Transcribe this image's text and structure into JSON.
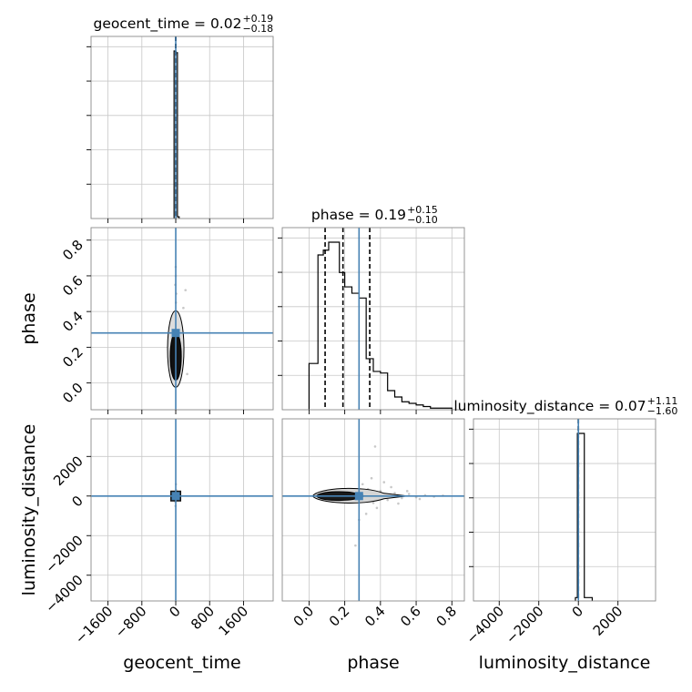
{
  "chart_data": {
    "type": "corner",
    "parameters": [
      "geocent_time",
      "phase",
      "luminosity_distance"
    ],
    "truths": {
      "geocent_time": 0.0,
      "phase": 0.28,
      "luminosity_distance": 0.0
    },
    "ranges": {
      "geocent_time": [
        -2000,
        2300
      ],
      "phase": [
        -0.15,
        0.87
      ],
      "luminosity_distance": [
        -5300,
        3900
      ]
    },
    "grid": true,
    "titles": [
      {
        "param": "geocent_time",
        "label": "geocent_time = 0.02",
        "plus": "+0.19",
        "minus": "−0.18"
      },
      {
        "param": "phase",
        "label": "phase = 0.19",
        "plus": "+0.15",
        "minus": "−0.10"
      },
      {
        "param": "luminosity_distance",
        "label": "luminosity_distance = 0.07",
        "plus": "+1.11",
        "minus": "−1.60"
      }
    ],
    "axis_labels": {
      "geocent_time": "geocent_time",
      "phase": "phase",
      "luminosity_distance": "luminosity_distance"
    },
    "ticks": {
      "geocent_time": {
        "values": [
          -1600,
          -800,
          0,
          800,
          1600
        ],
        "labels": [
          "−1600",
          "−800",
          "0",
          "800",
          "1600"
        ]
      },
      "phase": {
        "values": [
          0.0,
          0.2,
          0.4,
          0.6,
          0.8
        ],
        "labels": [
          "0.0",
          "0.2",
          "0.4",
          "0.6",
          "0.8"
        ]
      },
      "luminosity_distance": {
        "values": [
          -4000,
          -2000,
          0,
          2000
        ],
        "labels": [
          "−4000",
          "−2000",
          "0",
          "2000"
        ]
      }
    },
    "marginals": {
      "geocent_time": {
        "bin_edges": [
          -40,
          0,
          40,
          80
        ],
        "counts": [
          1.0,
          0.99,
          0.01
        ],
        "quantiles": [
          -0.16,
          0.02,
          0.21
        ]
      },
      "phase": {
        "bin_edges": [
          0.0,
          0.05,
          0.08,
          0.11,
          0.14,
          0.17,
          0.2,
          0.24,
          0.28,
          0.32,
          0.36,
          0.4,
          0.44,
          0.48,
          0.52,
          0.56,
          0.6,
          0.64,
          0.68,
          0.72,
          0.76,
          0.8
        ],
        "counts": [
          0.29,
          0.97,
          1.0,
          1.05,
          1.05,
          0.86,
          0.77,
          0.73,
          0.7,
          0.32,
          0.24,
          0.23,
          0.12,
          0.08,
          0.05,
          0.04,
          0.03,
          0.02,
          0.01,
          0.01,
          0.01
        ],
        "quantiles": [
          0.09,
          0.19,
          0.34
        ]
      },
      "luminosity_distance": {
        "bin_edges": [
          -150,
          -50,
          300,
          700
        ],
        "counts": [
          0.02,
          1.0,
          0.02
        ],
        "quantiles": [
          -1.53,
          0.07,
          1.18
        ]
      }
    },
    "scatter": {
      "geocent_time_vs_phase": [
        [
          0,
          0.05
        ],
        [
          5,
          0.08
        ],
        [
          -5,
          0.1
        ],
        [
          8,
          0.13
        ],
        [
          -8,
          0.16
        ],
        [
          3,
          0.2
        ],
        [
          -3,
          0.24
        ],
        [
          10,
          0.28
        ],
        [
          -10,
          0.31
        ],
        [
          6,
          0.35
        ],
        [
          -6,
          0.4
        ],
        [
          4,
          0.45
        ],
        [
          12,
          0.5
        ],
        [
          -12,
          0.55
        ],
        [
          2,
          0.6
        ],
        [
          0,
          0.65
        ],
        [
          20,
          0.12
        ],
        [
          -20,
          0.18
        ],
        [
          15,
          0.22
        ],
        [
          -15,
          0.26
        ],
        [
          25,
          0.3
        ],
        [
          -30,
          0.25
        ],
        [
          180,
          0.42
        ],
        [
          230,
          0.52
        ],
        [
          -180,
          0.2
        ],
        [
          90,
          0.15
        ],
        [
          -90,
          0.1
        ],
        [
          270,
          0.05
        ],
        [
          40,
          0.33
        ],
        [
          -40,
          0.38
        ],
        [
          60,
          0.07
        ],
        [
          -60,
          0.3
        ]
      ],
      "geocent_time_vs_luminosity_distance": [
        [
          0,
          0
        ],
        [
          20,
          100
        ],
        [
          -20,
          -100
        ],
        [
          40,
          50
        ],
        [
          -40,
          -50
        ],
        [
          10,
          300
        ],
        [
          -10,
          -300
        ],
        [
          60,
          20
        ],
        [
          -60,
          -20
        ],
        [
          5,
          600
        ],
        [
          -5,
          -500
        ],
        [
          80,
          0
        ],
        [
          -80,
          0
        ],
        [
          30,
          -200
        ],
        [
          -30,
          200
        ]
      ],
      "phase_vs_luminosity_distance": [
        [
          0.05,
          20
        ],
        [
          0.08,
          50
        ],
        [
          0.12,
          -40
        ],
        [
          0.15,
          80
        ],
        [
          0.18,
          -80
        ],
        [
          0.22,
          120
        ],
        [
          0.25,
          -150
        ],
        [
          0.28,
          200
        ],
        [
          0.3,
          -250
        ],
        [
          0.33,
          350
        ],
        [
          0.36,
          -350
        ],
        [
          0.4,
          250
        ],
        [
          0.44,
          -200
        ],
        [
          0.48,
          150
        ],
        [
          0.52,
          -100
        ],
        [
          0.56,
          100
        ],
        [
          0.6,
          -60
        ],
        [
          0.65,
          40
        ],
        [
          0.7,
          -30
        ],
        [
          0.75,
          20
        ],
        [
          0.3,
          600
        ],
        [
          0.32,
          -900
        ],
        [
          0.35,
          900
        ],
        [
          0.28,
          -1200
        ],
        [
          0.26,
          -2500
        ],
        [
          0.37,
          2500
        ],
        [
          0.42,
          700
        ],
        [
          0.38,
          -600
        ],
        [
          0.2,
          300
        ],
        [
          0.22,
          -300
        ],
        [
          0.1,
          100
        ],
        [
          0.46,
          450
        ],
        [
          0.5,
          -380
        ],
        [
          0.55,
          250
        ],
        [
          0.62,
          -150
        ]
      ]
    }
  }
}
